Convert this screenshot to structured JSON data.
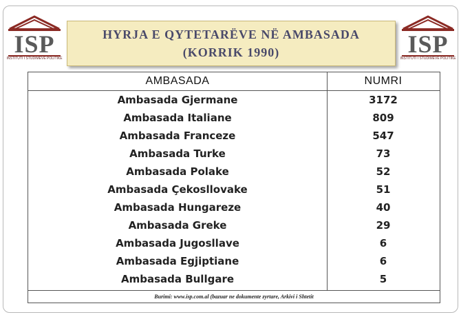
{
  "logo": {
    "text": "ISP",
    "subtitle": "INSTITUTI I STUDIMEVE POLITIKE"
  },
  "title": {
    "line1": "HYRJA E QYTETARËVE NË AMBASADA",
    "line2": "(KORRIK 1990)"
  },
  "table": {
    "headers": [
      "AMBASADA",
      "NUMRI"
    ],
    "rows": [
      [
        "Ambasada Gjermane",
        "3172"
      ],
      [
        "Ambasada Italiane",
        "809"
      ],
      [
        "Ambasada Franceze",
        "547"
      ],
      [
        "Ambasada Turke",
        "73"
      ],
      [
        "Ambasada Polake",
        "52"
      ],
      [
        "Ambasada Çekosllovake",
        "51"
      ],
      [
        "Ambasada Hungareze",
        "40"
      ],
      [
        "Ambasada Greke",
        "29"
      ],
      [
        "Ambasada Jugosllave",
        "6"
      ],
      [
        "Ambasada Egjiptiane",
        "6"
      ],
      [
        "Ambasada Bullgare",
        "5"
      ]
    ]
  },
  "source": "Burimi: www.isp.com.al (bazuar ne dokumente zyrtare, Arkivi i Shtetit"
}
